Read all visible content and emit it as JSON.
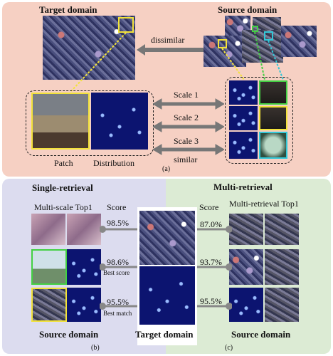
{
  "panel_a": {
    "target_title": "Target domain",
    "source_title": "Source domain",
    "dissimilar": "dissimilar",
    "similar": "similar",
    "scales": [
      "Scale 1",
      "Scale 2",
      "Scale 3"
    ],
    "patch_label": "Patch",
    "distribution_label": "Distribution",
    "caption": "(a)"
  },
  "panel_b": {
    "title": "Single-retrieval",
    "col_label": "Multi-scale Top1",
    "score_label": "Score",
    "scores": [
      "98.5%",
      "98.6%",
      "95.5%"
    ],
    "best_score": "Best score",
    "best_match": "Best match",
    "footer": "Source domain",
    "caption": "(b)"
  },
  "center": {
    "footer": "Target domain"
  },
  "panel_c": {
    "title": "Multi-retrieval",
    "score_label": "Score",
    "col_label": "Multi-retrieval Top1",
    "scores": [
      "87.0%",
      "93.7%",
      "95.5%"
    ],
    "footer": "Source domain",
    "caption": "(c)"
  },
  "colors": {
    "panel_a_bg": "#f6d0c3",
    "panel_b_bg": "#dcdcef",
    "panel_c_bg": "#dcebd4",
    "yellow": "#f2e23a",
    "green": "#43d043",
    "cyan": "#32c8d8"
  }
}
